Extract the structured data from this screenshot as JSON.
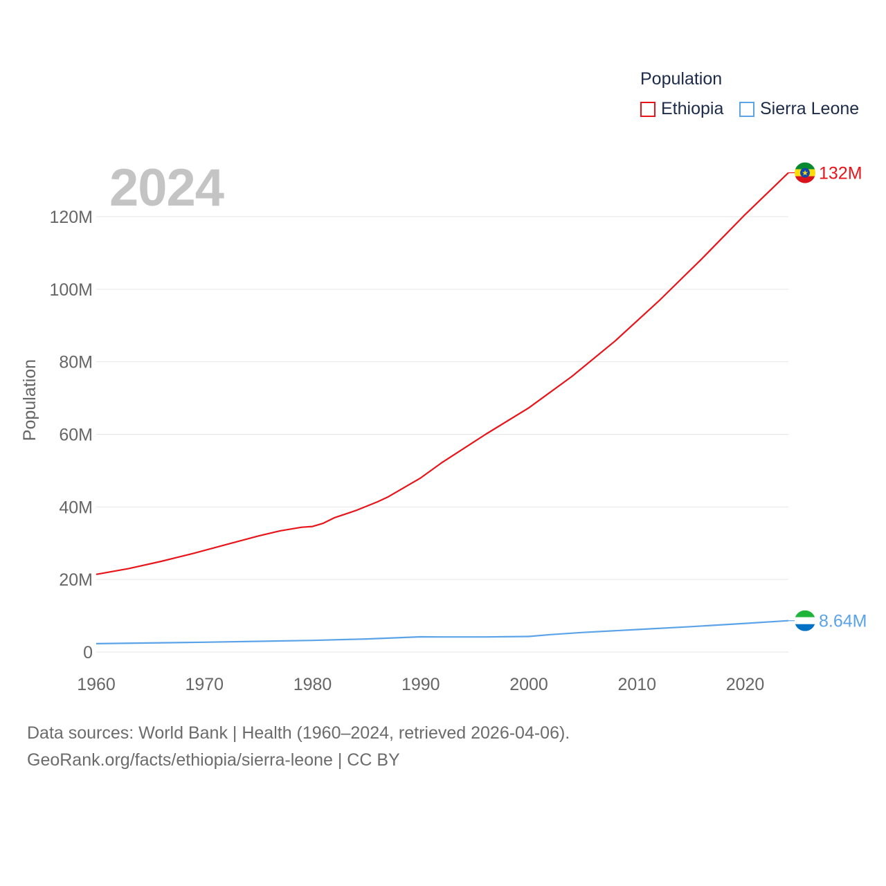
{
  "legend": {
    "title": "Population",
    "items": [
      "Ethiopia",
      "Sierra Leone"
    ]
  },
  "year_label": "2024",
  "footer": {
    "line1": "Data sources: World Bank | Health (1960–2024, retrieved 2026-04-06).",
    "line2": "GeoRank.org/facts/ethiopia/sierra-leone | CC BY"
  },
  "colors": {
    "ethiopia": "#e8141a",
    "sierra_leone": "#5ba3e8",
    "grid": "#e6e6e6",
    "tick": "#666666"
  },
  "chart_data": {
    "type": "line",
    "title": "",
    "xlabel": "",
    "ylabel": "Population",
    "xlim": [
      1960,
      2024
    ],
    "ylim": [
      0,
      130000000
    ],
    "x_ticks": [
      1960,
      1970,
      1980,
      1990,
      2000,
      2010,
      2020
    ],
    "x_tick_labels": [
      "1960",
      "1970",
      "1980",
      "1990",
      "2000",
      "2010",
      "2020"
    ],
    "y_ticks": [
      0,
      20000000,
      40000000,
      60000000,
      80000000,
      100000000,
      120000000
    ],
    "y_tick_labels": [
      "0",
      "20M",
      "40M",
      "60M",
      "80M",
      "100M",
      "120M"
    ],
    "grid": true,
    "legend_position": "top-right",
    "series": [
      {
        "name": "Ethiopia",
        "color": "#e8141a",
        "end_label": "132M",
        "flag": "ethiopia",
        "points": [
          [
            1960,
            21400000
          ],
          [
            1963,
            23000000
          ],
          [
            1966,
            25000000
          ],
          [
            1969,
            27200000
          ],
          [
            1972,
            29600000
          ],
          [
            1975,
            32000000
          ],
          [
            1977,
            33400000
          ],
          [
            1979,
            34400000
          ],
          [
            1980,
            34600000
          ],
          [
            1981,
            35500000
          ],
          [
            1982,
            37000000
          ],
          [
            1984,
            39000000
          ],
          [
            1986,
            41400000
          ],
          [
            1987,
            42800000
          ],
          [
            1990,
            48000000
          ],
          [
            1992,
            52300000
          ],
          [
            1996,
            60000000
          ],
          [
            2000,
            67300000
          ],
          [
            2004,
            76000000
          ],
          [
            2008,
            85800000
          ],
          [
            2012,
            96700000
          ],
          [
            2016,
            108400000
          ],
          [
            2020,
            120600000
          ],
          [
            2024,
            132100000
          ]
        ]
      },
      {
        "name": "Sierra Leone",
        "color": "#5ba3e8",
        "end_label": "8.64M",
        "flag": "sierra-leone",
        "points": [
          [
            1960,
            2300000
          ],
          [
            1970,
            2700000
          ],
          [
            1980,
            3200000
          ],
          [
            1985,
            3600000
          ],
          [
            1990,
            4200000
          ],
          [
            1992,
            4150000
          ],
          [
            1996,
            4150000
          ],
          [
            2000,
            4300000
          ],
          [
            2002,
            4800000
          ],
          [
            2005,
            5400000
          ],
          [
            2010,
            6200000
          ],
          [
            2015,
            7000000
          ],
          [
            2020,
            7900000
          ],
          [
            2024,
            8640000
          ]
        ]
      }
    ]
  }
}
